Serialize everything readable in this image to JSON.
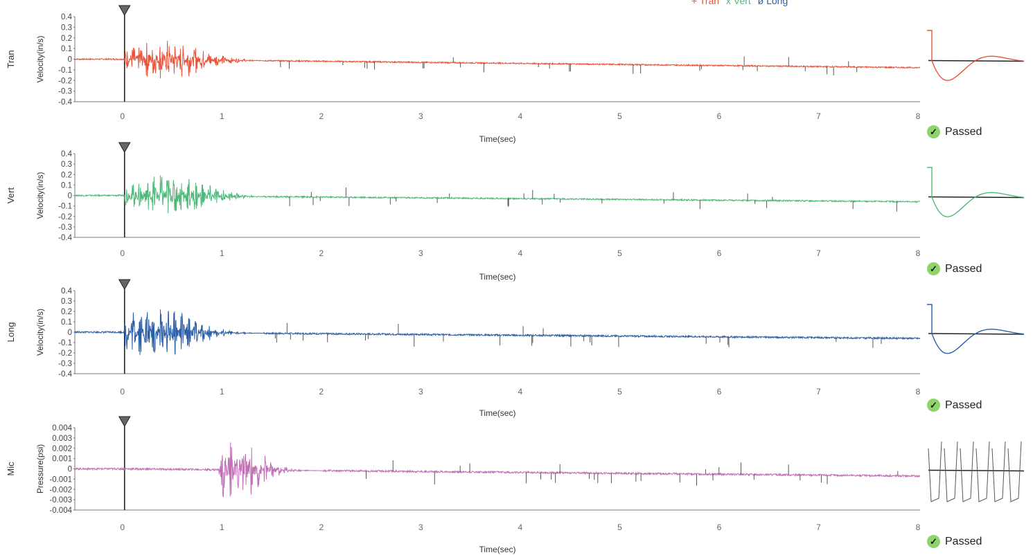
{
  "legend": [
    {
      "label": "+ Tran",
      "color": "#e8543a"
    },
    {
      "label": "x Vert",
      "color": "#4fb97a"
    },
    {
      "label": "ø Long",
      "color": "#2d5fa6"
    }
  ],
  "chart_data": [
    {
      "type": "line",
      "channel_label": "Tran",
      "ylabel": "Velocity(in/s)",
      "xlabel": "Time(sec)",
      "xlim": [
        -0.5,
        8
      ],
      "ylim": [
        -0.4,
        0.4
      ],
      "x_ticks": [
        "0",
        "1",
        "2",
        "3",
        "4",
        "5",
        "6",
        "7",
        "8"
      ],
      "y_ticks": [
        "0.4",
        "0.3",
        "0.2",
        "0.1",
        "0",
        "-0.1",
        "-0.2",
        "-0.3",
        "-0.4"
      ],
      "color": "#e8543a",
      "trigger_time": 0,
      "burst": {
        "start": 0,
        "peak_time": 0.4,
        "end": 1.4,
        "amplitude": 0.2,
        "drift_end": -0.08
      },
      "status": "Passed"
    },
    {
      "type": "line",
      "channel_label": "Vert",
      "ylabel": "Velocity(in/s)",
      "xlabel": "Time(sec)",
      "xlim": [
        -0.5,
        8
      ],
      "ylim": [
        -0.4,
        0.4
      ],
      "x_ticks": [
        "0",
        "1",
        "2",
        "3",
        "4",
        "5",
        "6",
        "7",
        "8"
      ],
      "y_ticks": [
        "0.4",
        "0.3",
        "0.2",
        "0.1",
        "0",
        "-0.1",
        "-0.2",
        "-0.3",
        "-0.4"
      ],
      "color": "#4fb97a",
      "trigger_time": 0,
      "burst": {
        "start": 0,
        "peak_time": 0.45,
        "end": 1.4,
        "amplitude": 0.22,
        "drift_end": -0.06
      },
      "status": "Passed"
    },
    {
      "type": "line",
      "channel_label": "Long",
      "ylabel": "Velocity(in/s)",
      "xlabel": "Time(sec)",
      "xlim": [
        -0.5,
        8
      ],
      "ylim": [
        -0.4,
        0.4
      ],
      "x_ticks": [
        "0",
        "1",
        "2",
        "3",
        "4",
        "5",
        "6",
        "7",
        "8"
      ],
      "y_ticks": [
        "0.4",
        "0.3",
        "0.2",
        "0.1",
        "0",
        "-0.1",
        "-0.2",
        "-0.3",
        "-0.4"
      ],
      "color": "#2d5fa6",
      "trigger_time": 0,
      "burst": {
        "start": 0,
        "peak_time": 0.3,
        "end": 1.4,
        "amplitude": 0.27,
        "drift_end": -0.06
      },
      "status": "Passed"
    },
    {
      "type": "line",
      "channel_label": "Mic",
      "ylabel": "Pressure(psi)",
      "xlabel": "Time(sec)",
      "xlim": [
        -0.5,
        8
      ],
      "ylim": [
        -0.004,
        0.004
      ],
      "x_ticks": [
        "0",
        "1",
        "2",
        "3",
        "4",
        "5",
        "6",
        "7",
        "8"
      ],
      "y_ticks": [
        "0.004",
        "0.003",
        "0.002",
        "0.001",
        "0",
        "-0.001",
        "-0.002",
        "-0.003",
        "-0.004"
      ],
      "color": "#c071b5",
      "trigger_time": 0,
      "burst": {
        "start": 0.95,
        "peak_time": 1.1,
        "end": 2.0,
        "amplitude": 0.003,
        "drift_end": -0.0007
      },
      "status": "Passed"
    }
  ]
}
